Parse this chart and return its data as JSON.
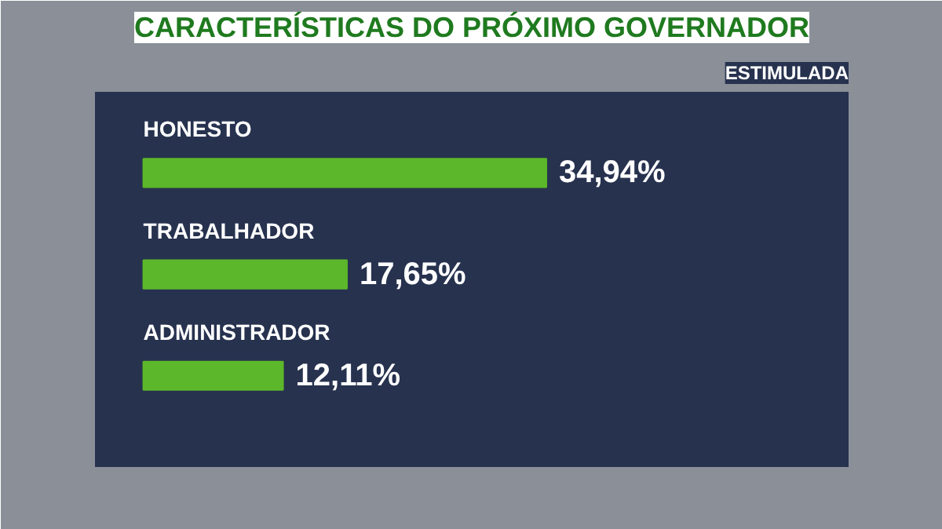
{
  "chart_data": {
    "type": "bar",
    "orientation": "horizontal",
    "title": "CARACTERÍSTICAS DO PRÓXIMO GOVERNADOR",
    "subtitle": "ESTIMULADA",
    "categories": [
      "HONESTO",
      "TRABALHADOR",
      "ADMINISTRADOR"
    ],
    "values": [
      34.94,
      17.65,
      12.11
    ],
    "value_labels": [
      "34,94%",
      "17,65%",
      "12,11%"
    ],
    "color": "#5cb82a",
    "grid": false
  }
}
